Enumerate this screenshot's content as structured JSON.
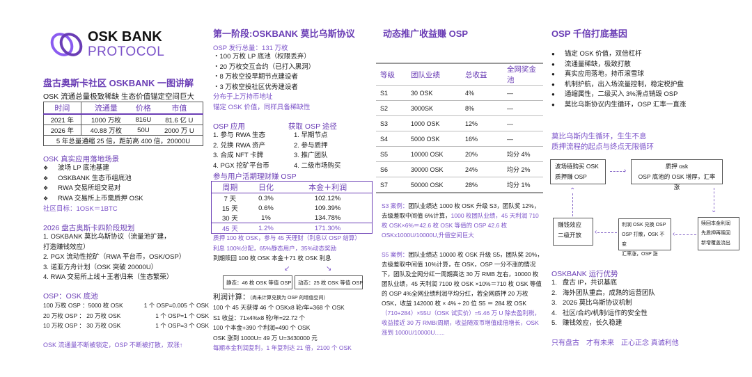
{
  "colors": {
    "accent": "#6a3db5",
    "highlight": "#7b52c9"
  },
  "logo": {
    "line1": "OSK BANK",
    "line2": "PROTOCOL",
    "icon": "interlinked-rings-logo"
  },
  "col1": {
    "title": "盘古奥斯卡社区 OSKBANK 一图讲解",
    "subtitle": "OSK 流通总量极致稀缺 生态价值锚定空间巨大",
    "supply_table": {
      "headers": [
        "时间",
        "流通量",
        "价格",
        "市值"
      ],
      "rows": [
        [
          "2021 年",
          "1000 万枚",
          "816U",
          "81.6 亿 U"
        ],
        [
          "2026 年",
          "40.88 万枚",
          "50U",
          "2000 万 U"
        ]
      ],
      "footer": "5 年总量通缩 25 倍，距前高 400 倍，20000U"
    },
    "scenes_title": "OSK 真实应用落地场景",
    "scenes": [
      "波场 LP 底池基建",
      "OSKBANK 生态币组底池",
      "RWA 交易所组交易对",
      "RWA 交易所上币需质押 OSK"
    ],
    "target": "社区目标：1OSK＝1BTC",
    "plan_title": "2026 盘古奥斯卡四阶段规划",
    "plan": [
      "1.  OSKBANK 莫比乌斯协议（流量池扩建，",
      "打造赚钱效应）",
      "2. PGX 流动性挖矿（RWA 平台币，OSK/OSP）",
      "3. 诺亚方舟计划（OSK 突破 20000U）",
      "4. RWA 交易所上线＋王者归来（生态繁荣）"
    ],
    "pool_title": "OSP：OSK 底池",
    "pool": [
      [
        "100 万枚 OSP ：5000 枚 OSK",
        "1 个 OSP=0.005 个 OSK"
      ],
      [
        "20 万枚 OSP ： 20 万枚 OSK",
        "1 个 OSP=1 个 OSK"
      ],
      [
        "10 万枚 OSP ： 30 万枚 OSK",
        "1 个 OSP=3 个 OSK"
      ]
    ],
    "footer": "OSK 流通量不断被锁定，OSP 不断被打散，双涨↑"
  },
  "col2": {
    "title": "第一阶段:OSKBANK 莫比乌斯协议",
    "issue_title": "OSP 发行总量：131 万枚",
    "issue": [
      "・100 万枚 LP 底池（权限丢弃）",
      "・20 万枚交互合约（已打入黑洞）",
      "・8 万枚空投早期节点建设者",
      "・3 万枚空投社区优秀建设者"
    ],
    "issue_notes": [
      "分布于上万持币地址",
      "锚定 OSK 价值，同样具备稀缺性"
    ],
    "apps_title": "OSP 应用",
    "apps": [
      "1. 参与 RWA 生态",
      "2. 兑换 RWA 资产",
      "3. 合成 NFT 卡牌",
      "4. PGX 挖矿平台币"
    ],
    "ways_title": "获取 OSP 途径",
    "ways": [
      "1. 早期节点",
      "2. 参与质押",
      "3. 推广团队",
      "4. 二级市场购买"
    ],
    "finance_title": "参与用户活期理财赚 OSP",
    "finance_table": {
      "headers": [
        "周期",
        "日化",
        "本金＋利润"
      ],
      "rows": [
        [
          "7 天",
          "0.3%",
          "102.12%"
        ],
        [
          "15 天",
          "0.6%",
          "109.39%"
        ],
        [
          "30 天",
          "1%",
          "134.78%"
        ],
        [
          "45 天",
          "1.2%",
          "171.30%"
        ]
      ]
    },
    "stake_lines": [
      "质押 100 枚 OSK，参与 45 天理财（利息以 OSP 结算）",
      "利息 100%分配，65%静态用户，35%动态奖励"
    ],
    "redeem": "到期赎回 100 枚 OSK 本金＋71 枚 OSK 利息",
    "static_box": "静态：46 枚 OSK 等值 OSP",
    "dynamic_box": "动态：25 枚 OSK 等值 OSP",
    "calc_title": "利润计算：",
    "calc_note": "（尚未计算兑换为 OSP 的增值空间）",
    "calc": [
      "100 个 45 天获得 46 个 OSKx8 轮/年=368 个 OSK",
      "S1 收益：71x4%x8 轮/年=22.72 个",
      "100 个本金+390 个利润=490 个 OSK",
      "OSK 涨到 1000U= 49 万 U=3430000 元"
    ],
    "calc_footer": "每期本金利润复利，1 年复利达 21 倍，2100 个 OSK"
  },
  "col3": {
    "title": "动态推广收益赚 OSP",
    "level_table": {
      "headers": [
        "等级",
        "团队业绩",
        "总收益",
        "全网奖金池"
      ],
      "rows": [
        [
          "S1",
          "30 OSK",
          "4%",
          "—"
        ],
        [
          "S2",
          "3000SK",
          "8%",
          "—"
        ],
        [
          "S3",
          "1000 OSK",
          "12%",
          "—"
        ],
        [
          "S4",
          "5000 OSK",
          "16%",
          "—"
        ],
        [
          "S5",
          "10000 OSK",
          "20%",
          "均分 4%"
        ],
        [
          "S6",
          "30000 OSK",
          "24%",
          "均分 2%"
        ],
        [
          "S7",
          "50000 OSK",
          "28%",
          "均分 1%"
        ]
      ]
    },
    "case_s3": [
      {
        "text": "S3 案例：",
        "hl": true
      },
      {
        "text": "团队业绩达 1000 枚 OSK 升级 S3，团队奖 12%，去级差取中间值 6%计算，",
        "hl": false
      },
      {
        "text": "1000 枚团队业绩，45 天利润 710 枚 OSK×6%＝42.6 枚 OSK 等值的 OSP 42.6 枚 OSKx1000U/10000U,升值空间巨大",
        "hl": true
      }
    ],
    "case_s5": [
      {
        "text": "S5 案例：",
        "hl": true
      },
      {
        "text": "团队业绩达 10000 枚 OSK 升级 S5，团队奖 20%，去级差取中间值 10%计算，在 OSK，OSP 一分不涨的情况下，团队及全网分红一周期高达 30 万 RMB 左右，10000 枚团队业绩，45 天利润 7100 枚 OSK ×10%＝710 枚 OSK 等值的 OSP 4%全网业绩利润平均分红，若全网质押 20 万枚 OSK，收益 142000 枚 × 4% ÷ 20 位 S5 ＝ 284 枚 OSK ",
        "hl": false
      },
      {
        "text": "（710+284）×55U（OSK 试实价）=5.46 万 U 除去盈利税，收益接近 30 万 RMB/周期，收益随双币增值成倍增长，OSK 涨到 1000U/10000U......",
        "hl": true
      }
    ]
  },
  "col4": {
    "title": "OSP 千倍打底基因",
    "genes": [
      "锚定 OSK 价值，双倍杠杆",
      "流通量稀缺，极致打散",
      "真实应用落地，持币滚雪球",
      "机制护航，出入场流量控制，稳定税护盘",
      "通缩属性，二级买入 3%滑点销毁 OSP",
      "莫比乌斯协议内生循环，OSP 汇率一直涨"
    ],
    "cycle_title": [
      "莫比乌斯内生循环，生生不息",
      "质押流程的起点与终点无限循环"
    ],
    "flow": {
      "buy": [
        "波场链购买 OSK",
        "质押赚 OSP"
      ],
      "stake": [
        "质押 osk",
        "OSP 底池的 OSK 增厚，汇率涨"
      ],
      "redeem": [
        "赎回本金利润",
        "先质押再赎回",
        "新增覆盖流出"
      ],
      "exchange": [
        "利润 OSK 兑换 OSP",
        "OSP 打散，OSK 不变",
        "汇率涨，OSP 涨"
      ],
      "effect": [
        "赚钱效应",
        "二级开放"
      ]
    },
    "adv_title": "OSKBANK 运行优势",
    "adv": [
      "1.   盘古 IP，共识基底",
      "2.   海外团队重启，成熟的运营团队",
      "3.   2026 莫比乌斯协议机制",
      "4.   社区/合约/机制/运作的安全性",
      "5.   赚钱效应，长久稳建"
    ],
    "slogan": "只有盘古　才有未来　正心正念 真诚利他"
  }
}
